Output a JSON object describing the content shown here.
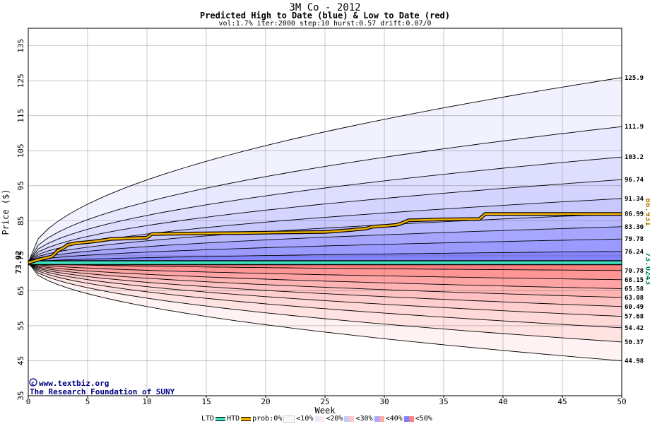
{
  "header": {
    "title": "3M Co - 2012",
    "subtitle": "Predicted High to Date (blue) &  Low to Date (red)",
    "params": "vol:1.7% iter:2000 step:10 hurst:0.57 drift:0.07/0"
  },
  "watermark": {
    "line1": "www.textbiz.org",
    "line2": "The Research Foundation of SUNY"
  },
  "chart_data": {
    "type": "area",
    "xlabel": "Week",
    "ylabel": "Price ($)",
    "xlim": [
      0,
      50
    ],
    "ylim": [
      35,
      140
    ],
    "x_ticks": [
      0,
      5,
      10,
      15,
      20,
      25,
      30,
      35,
      40,
      45,
      50
    ],
    "y_ticks": [
      35,
      45,
      55,
      65,
      75,
      85,
      95,
      105,
      115,
      125,
      135
    ],
    "grid": true,
    "start_price": 73.02,
    "start_label": "73.02",
    "high_band_endpoints": [
      76.24,
      79.78,
      83.3,
      86.99,
      91.34,
      96.74,
      103.2,
      111.9,
      125.9
    ],
    "high_band_labels": [
      "76.24",
      "79.78",
      "83.30",
      "86.99",
      "91.34",
      "96.74",
      "103.2",
      "111.9",
      "125.9"
    ],
    "low_band_endpoints": [
      70.78,
      68.15,
      65.58,
      63.08,
      60.49,
      57.68,
      54.42,
      50.37,
      44.98
    ],
    "low_band_labels": [
      "70.78",
      "68.15",
      "65.58",
      "63.08",
      "60.49",
      "57.68",
      "54.42",
      "50.37",
      "44.98"
    ],
    "htd_series": {
      "name": "HTD",
      "value_label": "86.931",
      "points": [
        [
          0,
          73.02
        ],
        [
          1,
          74.0
        ],
        [
          2,
          74.8
        ],
        [
          2.5,
          76.5
        ],
        [
          3,
          77.3
        ],
        [
          3.3,
          78.1
        ],
        [
          4,
          78.6
        ],
        [
          5,
          78.9
        ],
        [
          6,
          79.3
        ],
        [
          7,
          79.8
        ],
        [
          8,
          79.9
        ],
        [
          10,
          80.2
        ],
        [
          10.4,
          81.2
        ],
        [
          12,
          81.3
        ],
        [
          15,
          81.4
        ],
        [
          18,
          81.5
        ],
        [
          20,
          81.6
        ],
        [
          25,
          81.8
        ],
        [
          27,
          82.3
        ],
        [
          28.5,
          82.8
        ],
        [
          29,
          83.3
        ],
        [
          30,
          83.5
        ],
        [
          31,
          83.8
        ],
        [
          31.5,
          84.3
        ],
        [
          32,
          85.1
        ],
        [
          35,
          85.4
        ],
        [
          38,
          85.5
        ],
        [
          38.5,
          86.93
        ],
        [
          40,
          86.93
        ],
        [
          50,
          86.93
        ]
      ]
    },
    "ltd_series": {
      "name": "LTD",
      "value_label": "73.0243",
      "points": [
        [
          0,
          73.02
        ],
        [
          50,
          73.02
        ]
      ]
    },
    "legend": {
      "ltd": "LTD",
      "htd": "HTD",
      "prob_prefix": "prob:0%",
      "bins": [
        "<10%",
        "<20%",
        "<30%",
        "<40%",
        "<50%"
      ]
    },
    "colors": {
      "htd_line": "#f0b000",
      "ltd_line": "#40e0c0",
      "high_label": "#b07800",
      "low_label": "#008060"
    }
  }
}
